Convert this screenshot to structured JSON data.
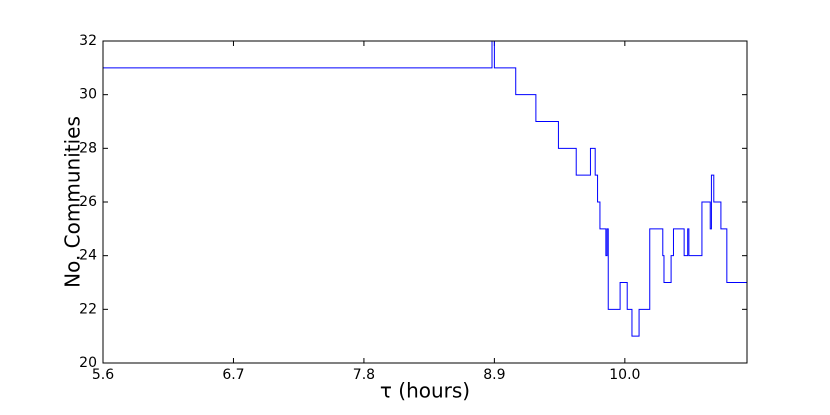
{
  "chart_data": {
    "type": "line",
    "xlabel": "τ (hours)",
    "ylabel": "No. Communities",
    "color": "#0000ff",
    "x": [
      5.6,
      8.88,
      8.88,
      8.9,
      8.9,
      9.08,
      9.08,
      9.25,
      9.25,
      9.44,
      9.44,
      9.59,
      9.59,
      9.71,
      9.71,
      9.75,
      9.75,
      9.77,
      9.77,
      9.79,
      9.79,
      9.84,
      9.84,
      9.85,
      9.85,
      9.86,
      9.86,
      9.96,
      9.96,
      10.02,
      10.02,
      10.06,
      10.06,
      10.12,
      10.12,
      10.21,
      10.21,
      10.32,
      10.32,
      10.33,
      10.33,
      10.39,
      10.39,
      10.41,
      10.41,
      10.5,
      10.5,
      10.53,
      10.53,
      10.54,
      10.54,
      10.65,
      10.65,
      10.72,
      10.72,
      10.73,
      10.73,
      10.75,
      10.75,
      10.81,
      10.81,
      10.86,
      10.86,
      11.03
    ],
    "values": [
      31,
      31,
      32,
      32,
      31,
      31,
      30,
      30,
      29,
      29,
      28,
      28,
      27,
      27,
      28,
      28,
      27,
      27,
      26,
      26,
      25,
      25,
      24,
      24,
      25,
      25,
      22,
      22,
      23,
      23,
      22,
      22,
      21,
      21,
      22,
      22,
      25,
      25,
      24,
      24,
      23,
      23,
      24,
      24,
      25,
      25,
      24,
      24,
      25,
      25,
      24,
      24,
      26,
      26,
      25,
      25,
      27,
      27,
      26,
      26,
      25,
      25,
      23,
      23
    ],
    "xlim": [
      5.6,
      11.03
    ],
    "xticks": [
      5.6,
      6.7,
      7.8,
      8.9,
      {
        "value": 10,
        "label": "10.0"
      }
    ],
    "ylim": [
      20,
      32
    ],
    "yticks": [
      20,
      22,
      24,
      26,
      28,
      30,
      32
    ],
    "grid": false
  }
}
